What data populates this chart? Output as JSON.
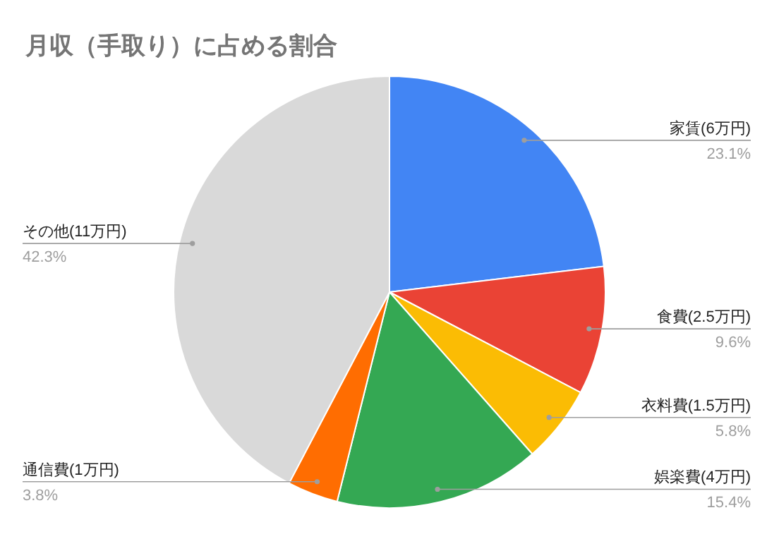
{
  "chart_data": {
    "type": "pie",
    "title": "月収（手取り）に占める割合",
    "categories": [
      "家賃(6万円)",
      "食費(2.5万円)",
      "衣料費(1.5万円)",
      "娯楽費(4万円)",
      "通信費(1万円)",
      "その他(11万円)"
    ],
    "values": [
      23.1,
      9.6,
      5.8,
      15.4,
      3.8,
      42.3
    ],
    "value_labels": [
      "23.1%",
      "9.6%",
      "5.8%",
      "15.4%",
      "3.8%",
      "42.3%"
    ],
    "colors": [
      "#4285f4",
      "#ea4335",
      "#fbbc04",
      "#34a853",
      "#ff6d01",
      "#d9d9d9"
    ],
    "legend": false
  }
}
